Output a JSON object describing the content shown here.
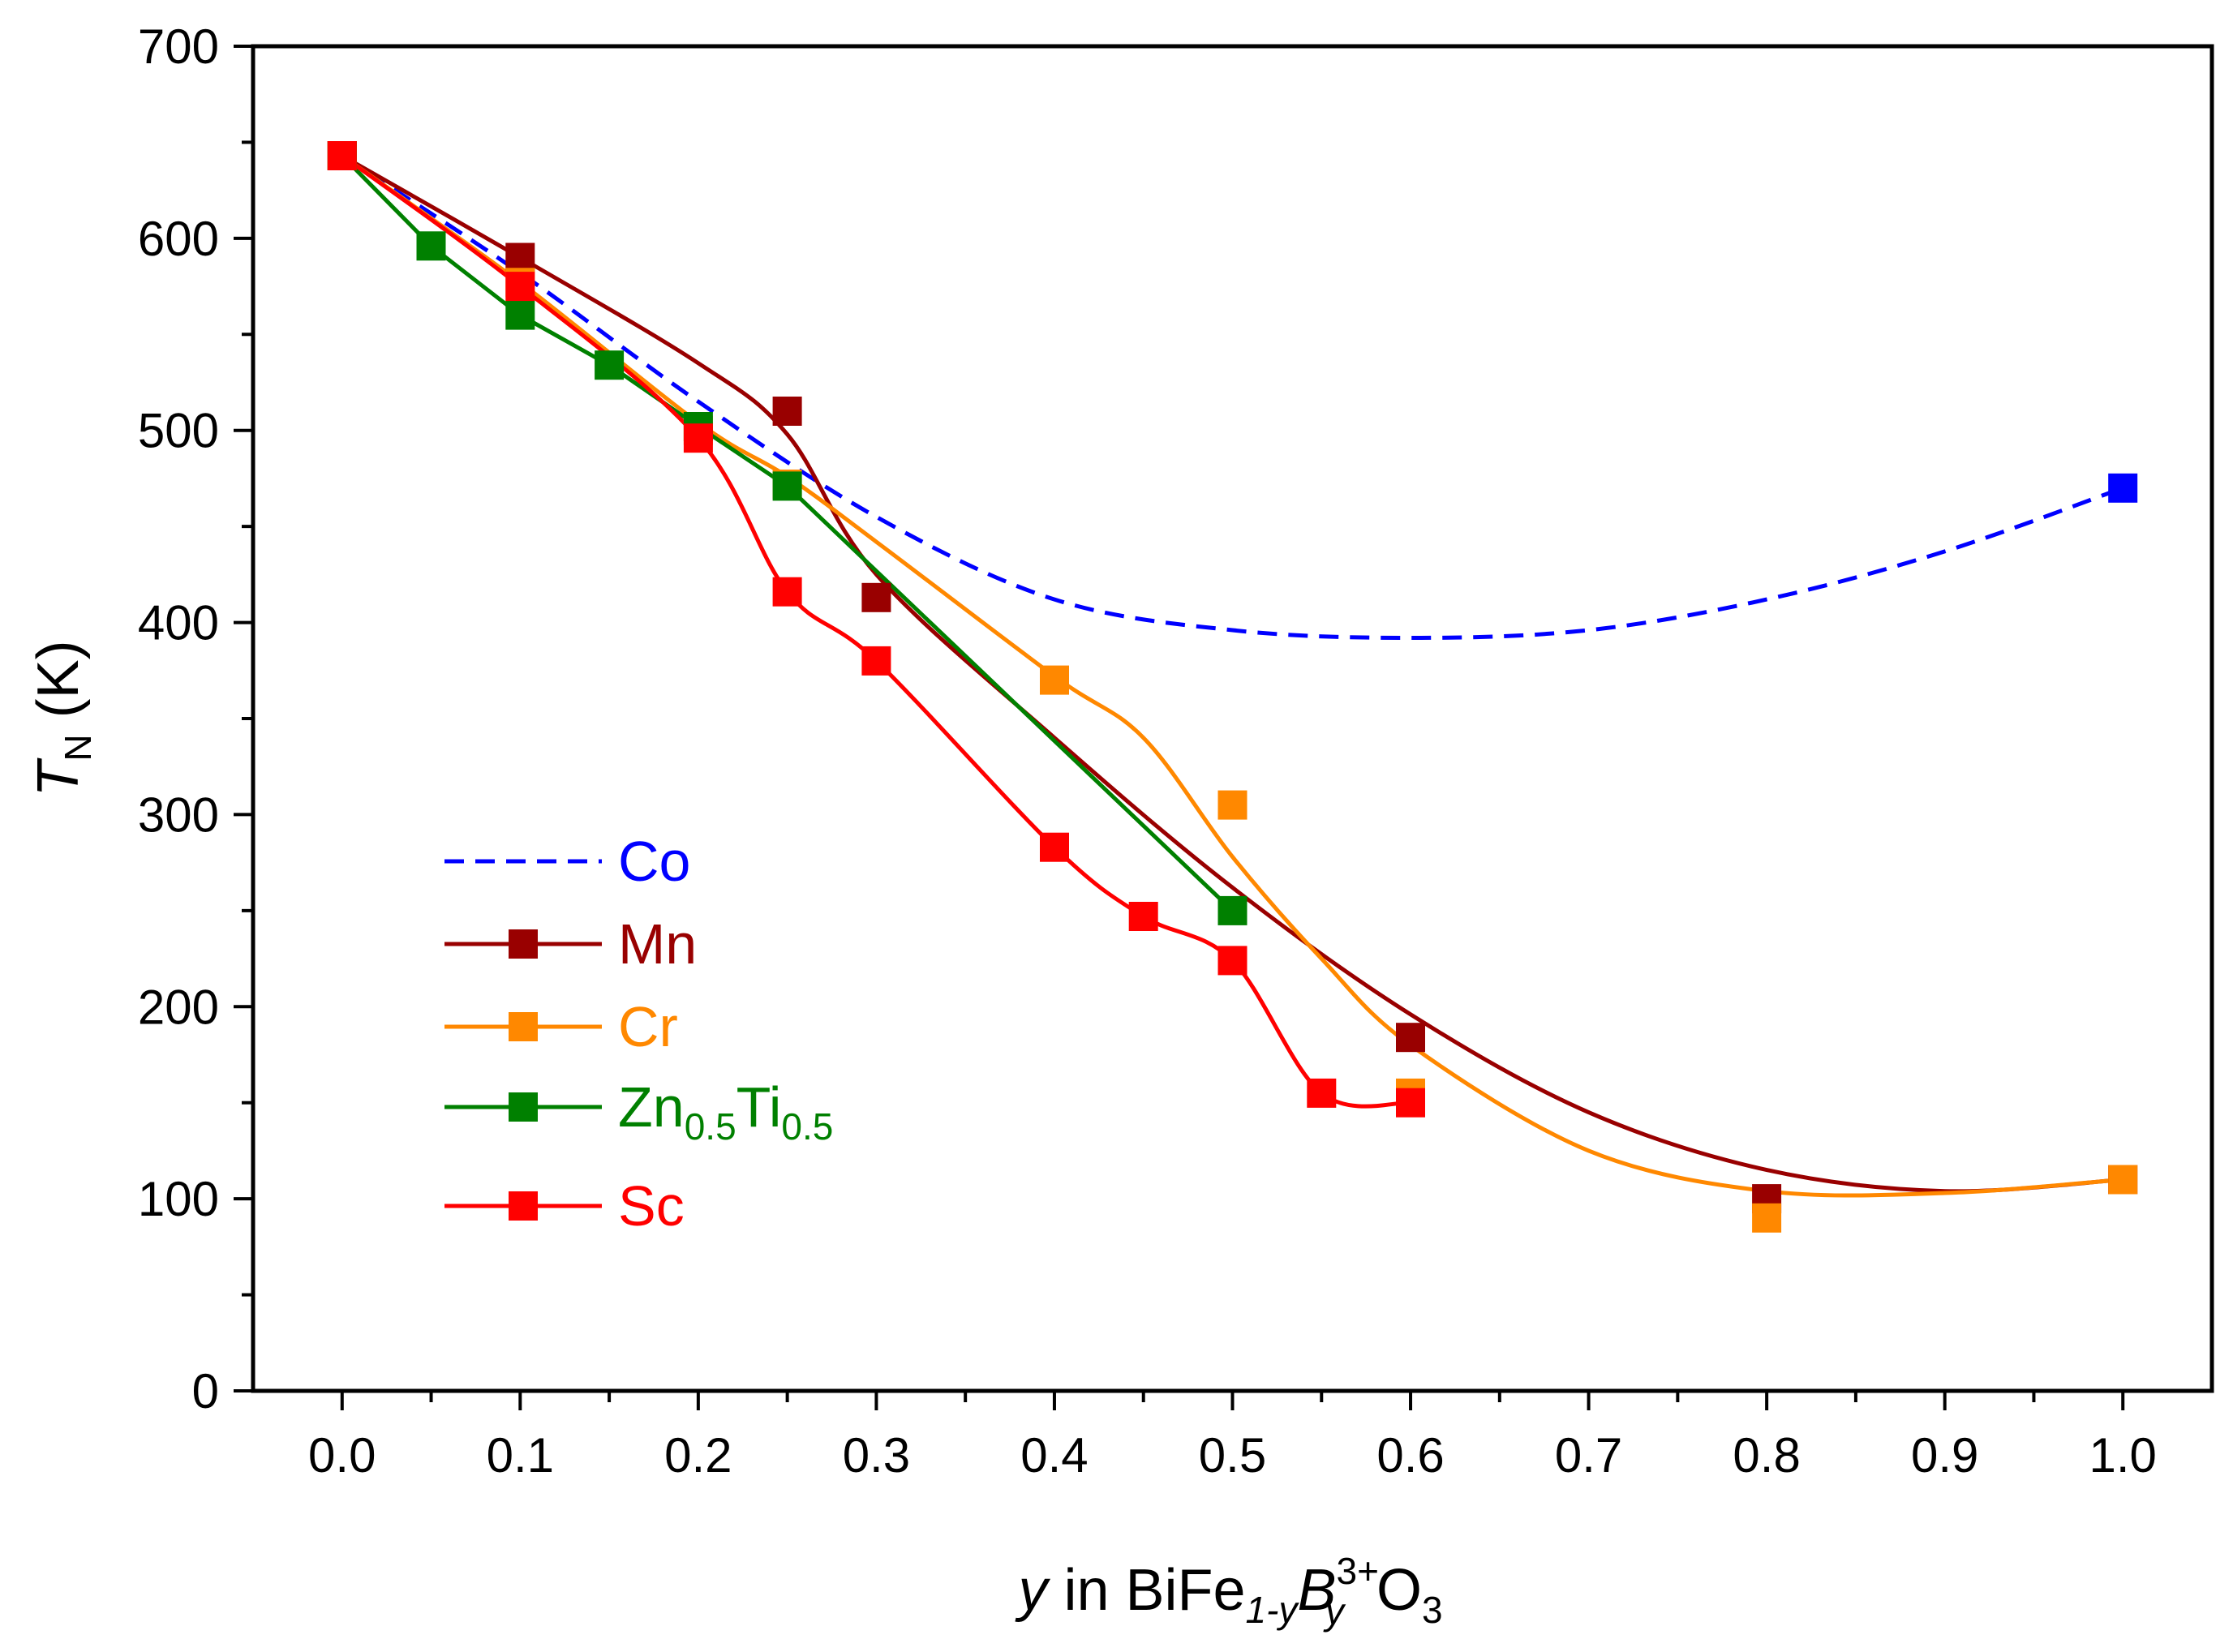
{
  "chart_data": {
    "type": "line",
    "title": "",
    "xlabel": {
      "var": "y",
      "text_in": " in BiFe",
      "sub1": "1-y",
      "b_letter": "B",
      "b_sup": "3+",
      "b_sub": "y",
      "tail": "O",
      "tail_sub": "3"
    },
    "ylabel": {
      "var": "T",
      "sub": "N",
      "unit": " (K)"
    },
    "xlim": [
      -0.05,
      1.05
    ],
    "ylim": [
      0,
      700
    ],
    "xticks": [
      "0.0",
      "0.1",
      "0.2",
      "0.3",
      "0.4",
      "0.5",
      "0.6",
      "0.7",
      "0.8",
      "0.9",
      "1.0"
    ],
    "xtick_values": [
      0.0,
      0.1,
      0.2,
      0.3,
      0.4,
      0.5,
      0.6,
      0.7,
      0.8,
      0.9,
      1.0
    ],
    "yticks": [
      "0",
      "100",
      "200",
      "300",
      "400",
      "500",
      "600",
      "700"
    ],
    "ytick_values": [
      0,
      100,
      200,
      300,
      400,
      500,
      600,
      700
    ],
    "grid": false,
    "legend_position": "left",
    "series": [
      {
        "name": "Co",
        "color": "#0000ff",
        "line_style": "dashed",
        "points": [
          [
            1.0,
            470
          ]
        ],
        "curve": [
          [
            0.0,
            643
          ],
          [
            0.1,
            582
          ],
          [
            0.2,
            515
          ],
          [
            0.3,
            455
          ],
          [
            0.4,
            412
          ],
          [
            0.5,
            396
          ],
          [
            0.6,
            392
          ],
          [
            0.7,
            396
          ],
          [
            0.8,
            412
          ],
          [
            0.9,
            437
          ],
          [
            1.0,
            470
          ]
        ]
      },
      {
        "name": "Mn",
        "color": "#990000",
        "line_style": "solid",
        "points": [
          [
            0.0,
            643
          ],
          [
            0.1,
            590
          ],
          [
            0.25,
            510
          ],
          [
            0.3,
            413
          ],
          [
            0.6,
            184
          ],
          [
            0.8,
            100
          ],
          [
            1.0,
            110
          ]
        ],
        "curve": [
          [
            0.0,
            643
          ],
          [
            0.1,
            590
          ],
          [
            0.2,
            535
          ],
          [
            0.25,
            498
          ],
          [
            0.3,
            425
          ],
          [
            0.4,
            340
          ],
          [
            0.5,
            262
          ],
          [
            0.6,
            196
          ],
          [
            0.7,
            145
          ],
          [
            0.8,
            115
          ],
          [
            0.9,
            104
          ],
          [
            1.0,
            110
          ]
        ]
      },
      {
        "name": "Cr",
        "color": "#ff8800",
        "line_style": "solid",
        "points": [
          [
            0.0,
            643
          ],
          [
            0.1,
            577
          ],
          [
            0.2,
            500
          ],
          [
            0.25,
            472
          ],
          [
            0.4,
            370
          ],
          [
            0.5,
            305
          ],
          [
            0.6,
            155
          ],
          [
            0.8,
            90
          ],
          [
            1.0,
            110
          ]
        ],
        "curve": [
          [
            0.0,
            643
          ],
          [
            0.1,
            577
          ],
          [
            0.2,
            504
          ],
          [
            0.25,
            476
          ],
          [
            0.3,
            442
          ],
          [
            0.4,
            372
          ],
          [
            0.45,
            340
          ],
          [
            0.5,
            278
          ],
          [
            0.55,
            225
          ],
          [
            0.6,
            180
          ],
          [
            0.7,
            125
          ],
          [
            0.8,
            104
          ],
          [
            0.9,
            103
          ],
          [
            1.0,
            110
          ]
        ]
      },
      {
        "name": "Zn",
        "name_sub1": "0.5",
        "name_mid": "Ti",
        "name_sub2": "0.5",
        "color": "#008000",
        "line_style": "solid",
        "points": [
          [
            0.0,
            643
          ],
          [
            0.05,
            596
          ],
          [
            0.1,
            560
          ],
          [
            0.15,
            534
          ],
          [
            0.2,
            502
          ],
          [
            0.25,
            471
          ],
          [
            0.5,
            250
          ]
        ],
        "curve": [
          [
            0.0,
            643
          ],
          [
            0.05,
            596
          ],
          [
            0.1,
            560
          ],
          [
            0.15,
            534
          ],
          [
            0.2,
            502
          ],
          [
            0.25,
            471
          ],
          [
            0.5,
            250
          ]
        ]
      },
      {
        "name": "Sc",
        "color": "#ff0000",
        "line_style": "solid",
        "points": [
          [
            0.0,
            643
          ],
          [
            0.1,
            575
          ],
          [
            0.2,
            496
          ],
          [
            0.25,
            416
          ],
          [
            0.3,
            380
          ],
          [
            0.4,
            283
          ],
          [
            0.45,
            247
          ],
          [
            0.5,
            224
          ],
          [
            0.55,
            155
          ],
          [
            0.6,
            150
          ]
        ],
        "curve": [
          [
            0.0,
            643
          ],
          [
            0.1,
            575
          ],
          [
            0.2,
            496
          ],
          [
            0.25,
            416
          ],
          [
            0.3,
            380
          ],
          [
            0.4,
            283
          ],
          [
            0.45,
            247
          ],
          [
            0.5,
            224
          ],
          [
            0.55,
            155
          ],
          [
            0.6,
            150
          ]
        ]
      }
    ]
  }
}
